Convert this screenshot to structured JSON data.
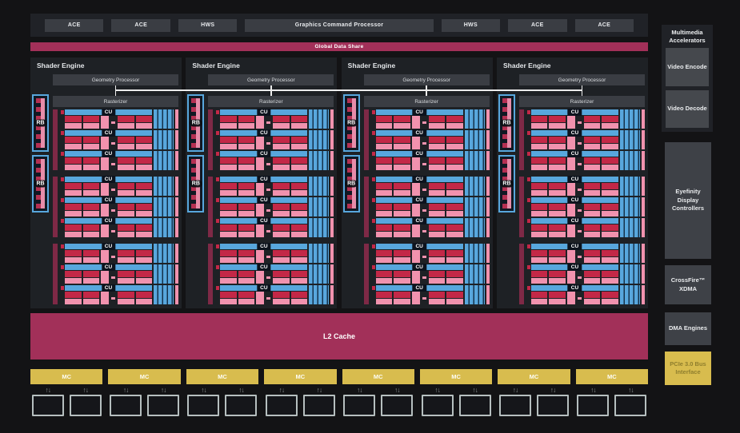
{
  "top_row": {
    "items": [
      {
        "label": "ACE",
        "wide": false
      },
      {
        "label": "ACE",
        "wide": false
      },
      {
        "label": "HWS",
        "wide": false
      },
      {
        "label": "Graphics Command Processor",
        "wide": true
      },
      {
        "label": "HWS",
        "wide": false
      },
      {
        "label": "ACE",
        "wide": false
      },
      {
        "label": "ACE",
        "wide": false
      }
    ]
  },
  "global_data_share": {
    "label": "Global Data Share"
  },
  "shader_engine": {
    "title": "Shader Engine",
    "count": 4,
    "geometry_processor_label": "Geometry Processor",
    "rasterizer_label": "Rasterizer",
    "rb_label": "RB",
    "rb_blocks_per_engine": 2,
    "cu_label": "CU",
    "cu_groups_per_engine": 3,
    "cus_per_group": 3
  },
  "l2_cache": {
    "label": "L2 Cache"
  },
  "memory": {
    "mc_label": "MC",
    "mc_count": 8,
    "phy_boxes_per_mc": 2,
    "arrow_icon": "↑↓"
  },
  "sidebar": {
    "multimedia": {
      "title": "Multimedia Accelerators",
      "items": [
        "Video Encode",
        "Video Decode"
      ]
    },
    "boxes": [
      {
        "label": "Eyefinity Display Controllers",
        "highlight": false
      },
      {
        "label": "CrossFire™ XDMA",
        "highlight": false
      },
      {
        "label": "DMA Engines",
        "highlight": false
      },
      {
        "label": "PCIe 3.0 Bus Interface",
        "highlight": true
      }
    ]
  },
  "colors": {
    "crimson": "#a23059",
    "dark_crimson_bar": "#7e2946",
    "blue": "#58a7dd",
    "red": "#c32847",
    "pink": "#f192ae",
    "yellow": "#d8bc4e",
    "panel_gray": "#202227",
    "box_gray": "#3a3d43",
    "background": "#131315"
  }
}
